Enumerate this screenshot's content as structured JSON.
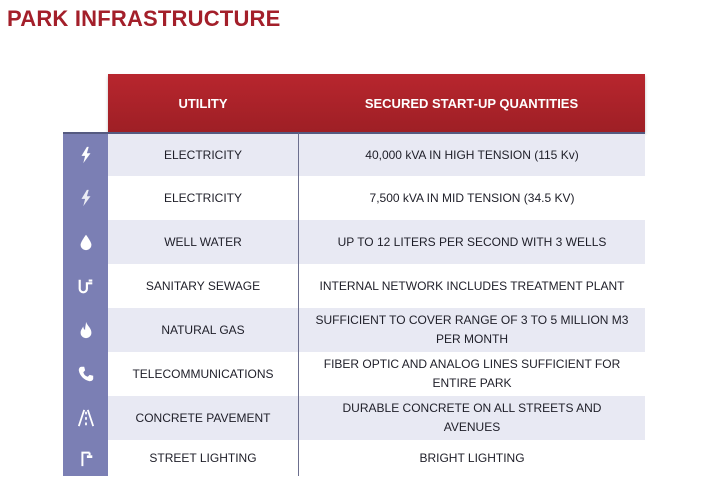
{
  "page": {
    "title": "PARK INFRASTRUCTURE"
  },
  "table": {
    "headers": {
      "utility": "UTILITY",
      "quantities": "SECURED START-UP QUANTITIES"
    },
    "rows": [
      {
        "icon": "lightning-icon",
        "utility": "ELECTRICITY",
        "quantity": "40,000 kVA IN HIGH TENSION (115 Kv)"
      },
      {
        "icon": "lightning-icon",
        "utility": "ELECTRICITY",
        "quantity": "7,500 kVA IN MID TENSION (34.5 KV)"
      },
      {
        "icon": "water-drop-icon",
        "utility": "WELL WATER",
        "quantity": "UP TO 12 LITERS PER SECOND WITH 3 WELLS"
      },
      {
        "icon": "pipe-icon",
        "utility": "SANITARY SEWAGE",
        "quantity": "INTERNAL NETWORK INCLUDES TREATMENT PLANT"
      },
      {
        "icon": "flame-icon",
        "utility": "NATURAL GAS",
        "quantity": "SUFFICIENT TO COVER RANGE OF 3 TO 5 MILLION M3 PER MONTH"
      },
      {
        "icon": "phone-icon",
        "utility": "TELECOMMUNICATIONS",
        "quantity": "FIBER OPTIC AND ANALOG LINES SUFFICIENT FOR ENTIRE PARK"
      },
      {
        "icon": "road-icon",
        "utility": "CONCRETE PAVEMENT",
        "quantity": "DURABLE CONCRETE ON ALL STREETS AND AVENUES"
      },
      {
        "icon": "street-lamp-icon",
        "utility": "STREET LIGHTING",
        "quantity": "BRIGHT LIGHTING"
      }
    ]
  },
  "colors": {
    "title": "#a31f2a",
    "header_bg": "#b8262e",
    "icon_column": "#7b7fb4",
    "stripe": "#e8e9f3"
  }
}
